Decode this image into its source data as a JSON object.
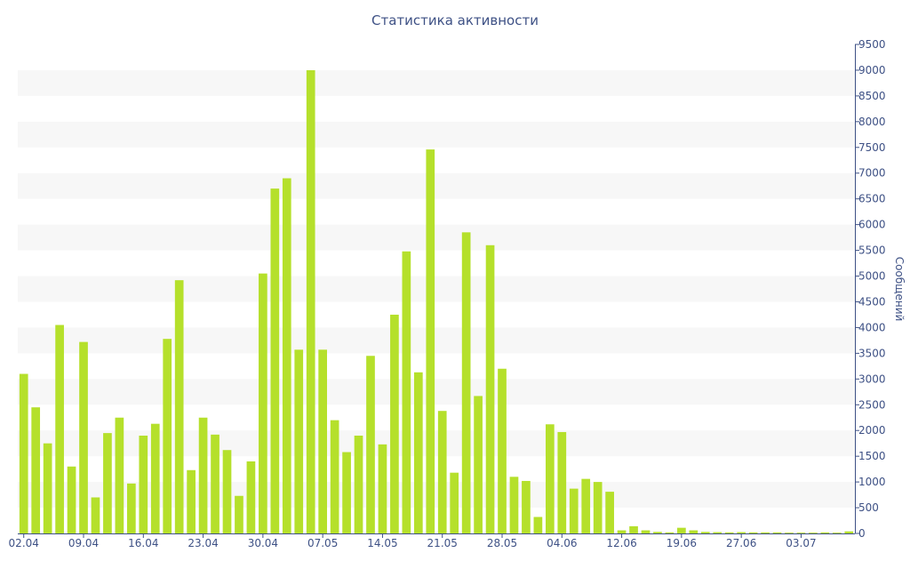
{
  "chart_data": {
    "type": "bar",
    "title": "Статистика активности",
    "ylabel": "Сообщений",
    "xlabel": "",
    "ylim": [
      0,
      9500
    ],
    "y_ticks": [
      0,
      500,
      1000,
      1500,
      2000,
      2500,
      3000,
      3500,
      4000,
      4500,
      5000,
      5500,
      6000,
      6500,
      7000,
      7500,
      8000,
      8500,
      9000,
      9500
    ],
    "y_axis_position": "right",
    "grid": "alternating horizontal bands",
    "legend": "none",
    "bar_color": "#b5e02b",
    "x_tick_labels": [
      {
        "label": "02.04",
        "index": 0
      },
      {
        "label": "09.04",
        "index": 5
      },
      {
        "label": "16.04",
        "index": 10
      },
      {
        "label": "23.04",
        "index": 15
      },
      {
        "label": "30.04",
        "index": 20
      },
      {
        "label": "07.05",
        "index": 25
      },
      {
        "label": "14.05",
        "index": 30
      },
      {
        "label": "21.05",
        "index": 35
      },
      {
        "label": "28.05",
        "index": 40
      },
      {
        "label": "04.06",
        "index": 45
      },
      {
        "label": "12.06",
        "index": 50
      },
      {
        "label": "19.06",
        "index": 55
      },
      {
        "label": "27.06",
        "index": 60
      },
      {
        "label": "03.07",
        "index": 65
      }
    ],
    "values": [
      3100,
      2450,
      1750,
      4050,
      1300,
      3720,
      700,
      1950,
      2250,
      970,
      1900,
      2130,
      3780,
      4920,
      1230,
      2250,
      1920,
      1620,
      730,
      1400,
      5050,
      6700,
      6900,
      3570,
      9000,
      3570,
      2200,
      1580,
      1900,
      3450,
      1730,
      4250,
      5480,
      3130,
      7460,
      2380,
      1180,
      5850,
      2670,
      5600,
      3200,
      1100,
      1020,
      320,
      2120,
      1970,
      870,
      1060,
      1000,
      810,
      60,
      140,
      60,
      30,
      20,
      110,
      60,
      30,
      25,
      20,
      25,
      20,
      20,
      20,
      15,
      15,
      15,
      20,
      15,
      40
    ]
  }
}
